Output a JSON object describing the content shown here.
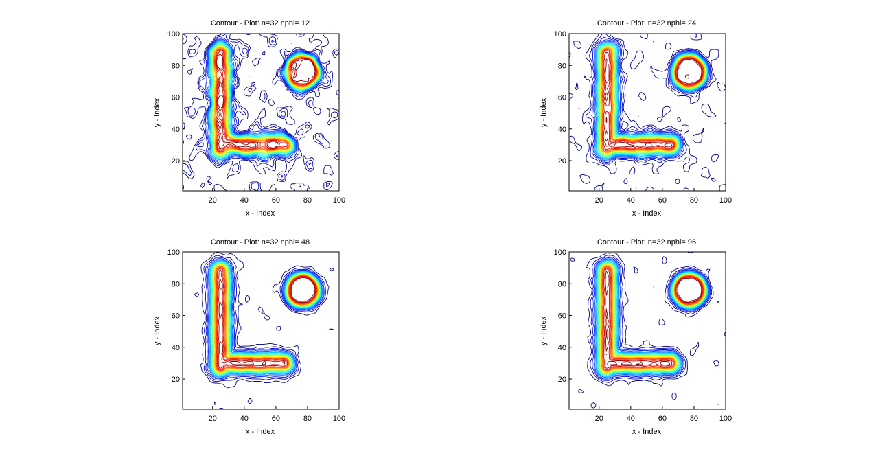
{
  "chart_data": [
    {
      "type": "contour",
      "title": "Contour - Plot: n=32    nphi= 12",
      "xlabel": "x - Index",
      "ylabel": "y - Index",
      "xlim": [
        1,
        100
      ],
      "ylim": [
        1,
        100
      ],
      "xticks": [
        20,
        40,
        60,
        80,
        100
      ],
      "yticks": [
        20,
        40,
        60,
        80,
        100
      ],
      "colormap": "jet",
      "shapes": {
        "letter_L": {
          "vertical_x": 25,
          "vertical_y": [
            28,
            88
          ],
          "horizontal_y": 30,
          "horizontal_x": [
            25,
            65
          ]
        },
        "circle": {
          "center": [
            77,
            76
          ],
          "radius": 12
        }
      },
      "noise_level": "high"
    },
    {
      "type": "contour",
      "title": "Contour - Plot: n=32    nphi= 24",
      "xlabel": "x - Index",
      "ylabel": "y - Index",
      "xlim": [
        1,
        100
      ],
      "ylim": [
        1,
        100
      ],
      "xticks": [
        20,
        40,
        60,
        80,
        100
      ],
      "yticks": [
        20,
        40,
        60,
        80,
        100
      ],
      "colormap": "jet",
      "shapes": {
        "letter_L": {
          "vertical_x": 25,
          "vertical_y": [
            28,
            88
          ],
          "horizontal_y": 30,
          "horizontal_x": [
            25,
            65
          ]
        },
        "circle": {
          "center": [
            77,
            76
          ],
          "radius": 12
        }
      },
      "noise_level": "medium"
    },
    {
      "type": "contour",
      "title": "Contour - Plot: n=32    nphi= 48",
      "xlabel": "x - Index",
      "ylabel": "y - Index",
      "xlim": [
        1,
        100
      ],
      "ylim": [
        1,
        100
      ],
      "xticks": [
        20,
        40,
        60,
        80,
        100
      ],
      "yticks": [
        20,
        40,
        60,
        80,
        100
      ],
      "colormap": "jet",
      "shapes": {
        "letter_L": {
          "vertical_x": 25,
          "vertical_y": [
            28,
            88
          ],
          "horizontal_y": 30,
          "horizontal_x": [
            25,
            65
          ]
        },
        "circle": {
          "center": [
            77,
            76
          ],
          "radius": 12
        }
      },
      "noise_level": "low"
    },
    {
      "type": "contour",
      "title": "Contour - Plot: n=32    nphi= 96",
      "xlabel": "x - Index",
      "ylabel": "y - Index",
      "xlim": [
        1,
        100
      ],
      "ylim": [
        1,
        100
      ],
      "xticks": [
        20,
        40,
        60,
        80,
        100
      ],
      "yticks": [
        20,
        40,
        60,
        80,
        100
      ],
      "colormap": "jet",
      "shapes": {
        "letter_L": {
          "vertical_x": 25,
          "vertical_y": [
            28,
            88
          ],
          "horizontal_y": 30,
          "horizontal_x": [
            25,
            65
          ]
        },
        "circle": {
          "center": [
            77,
            76
          ],
          "radius": 12
        }
      },
      "noise_level": "low"
    }
  ]
}
